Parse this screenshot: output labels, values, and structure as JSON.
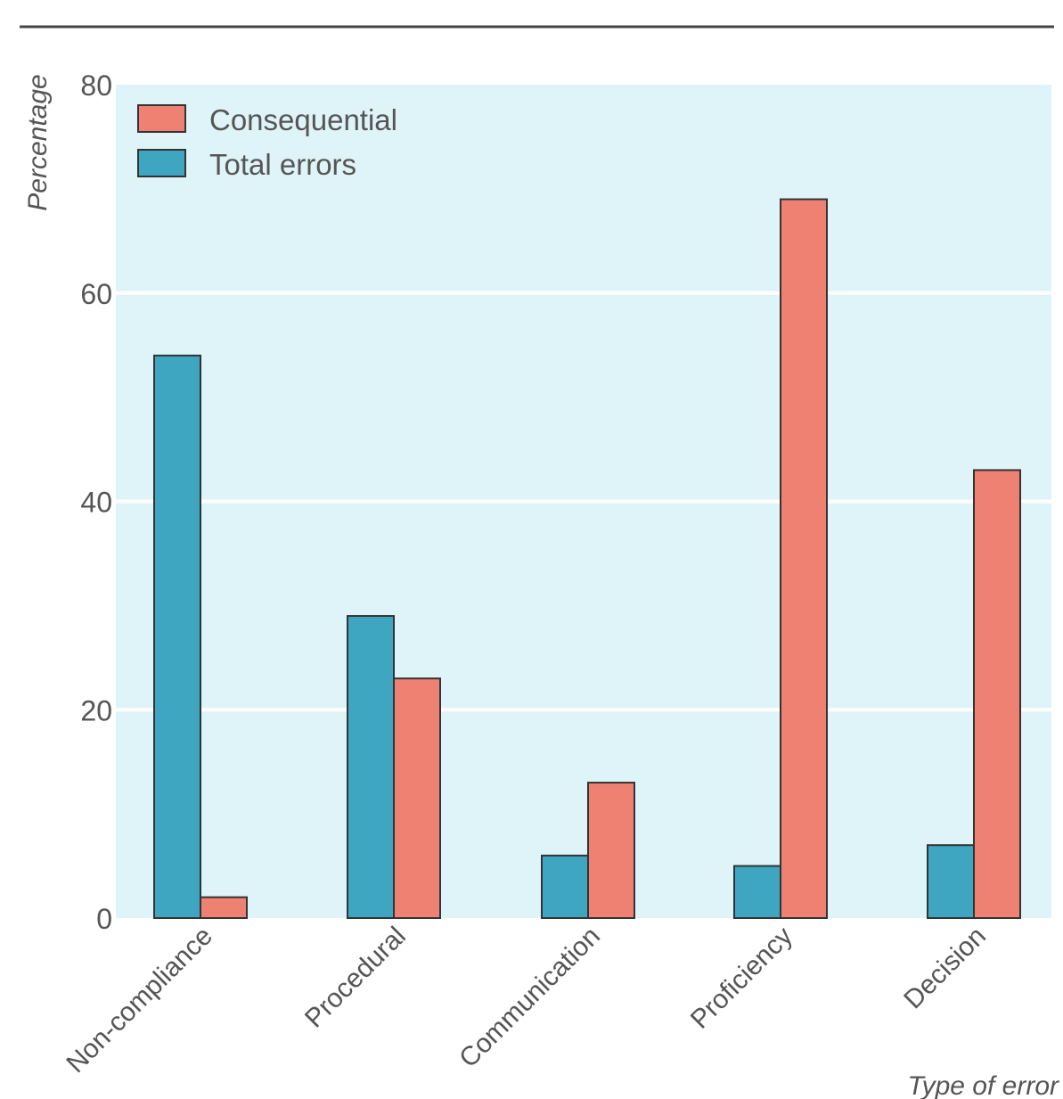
{
  "chart_data": {
    "type": "bar",
    "title": "",
    "xlabel": "Type of error",
    "ylabel": "Percentage",
    "ylim": [
      0,
      80
    ],
    "yticks": [
      0,
      20,
      40,
      60,
      80
    ],
    "grid": true,
    "legend_position": "top-left",
    "categories": [
      "Non-compliance",
      "Procedural",
      "Communication",
      "Proficiency",
      "Decision"
    ],
    "series": [
      {
        "name": "Total errors",
        "color": "#3fa6c2",
        "values": [
          54,
          29,
          6,
          5,
          7
        ]
      },
      {
        "name": "Consequential",
        "color": "#ef8173",
        "values": [
          2,
          23,
          13,
          69,
          43
        ]
      }
    ],
    "legend_order": [
      "Consequential",
      "Total errors"
    ],
    "colors": {
      "plot_background": "#dff4f8",
      "gridline": "#ffffff",
      "bar_edge": "#333333",
      "top_rule": "#444444"
    }
  }
}
